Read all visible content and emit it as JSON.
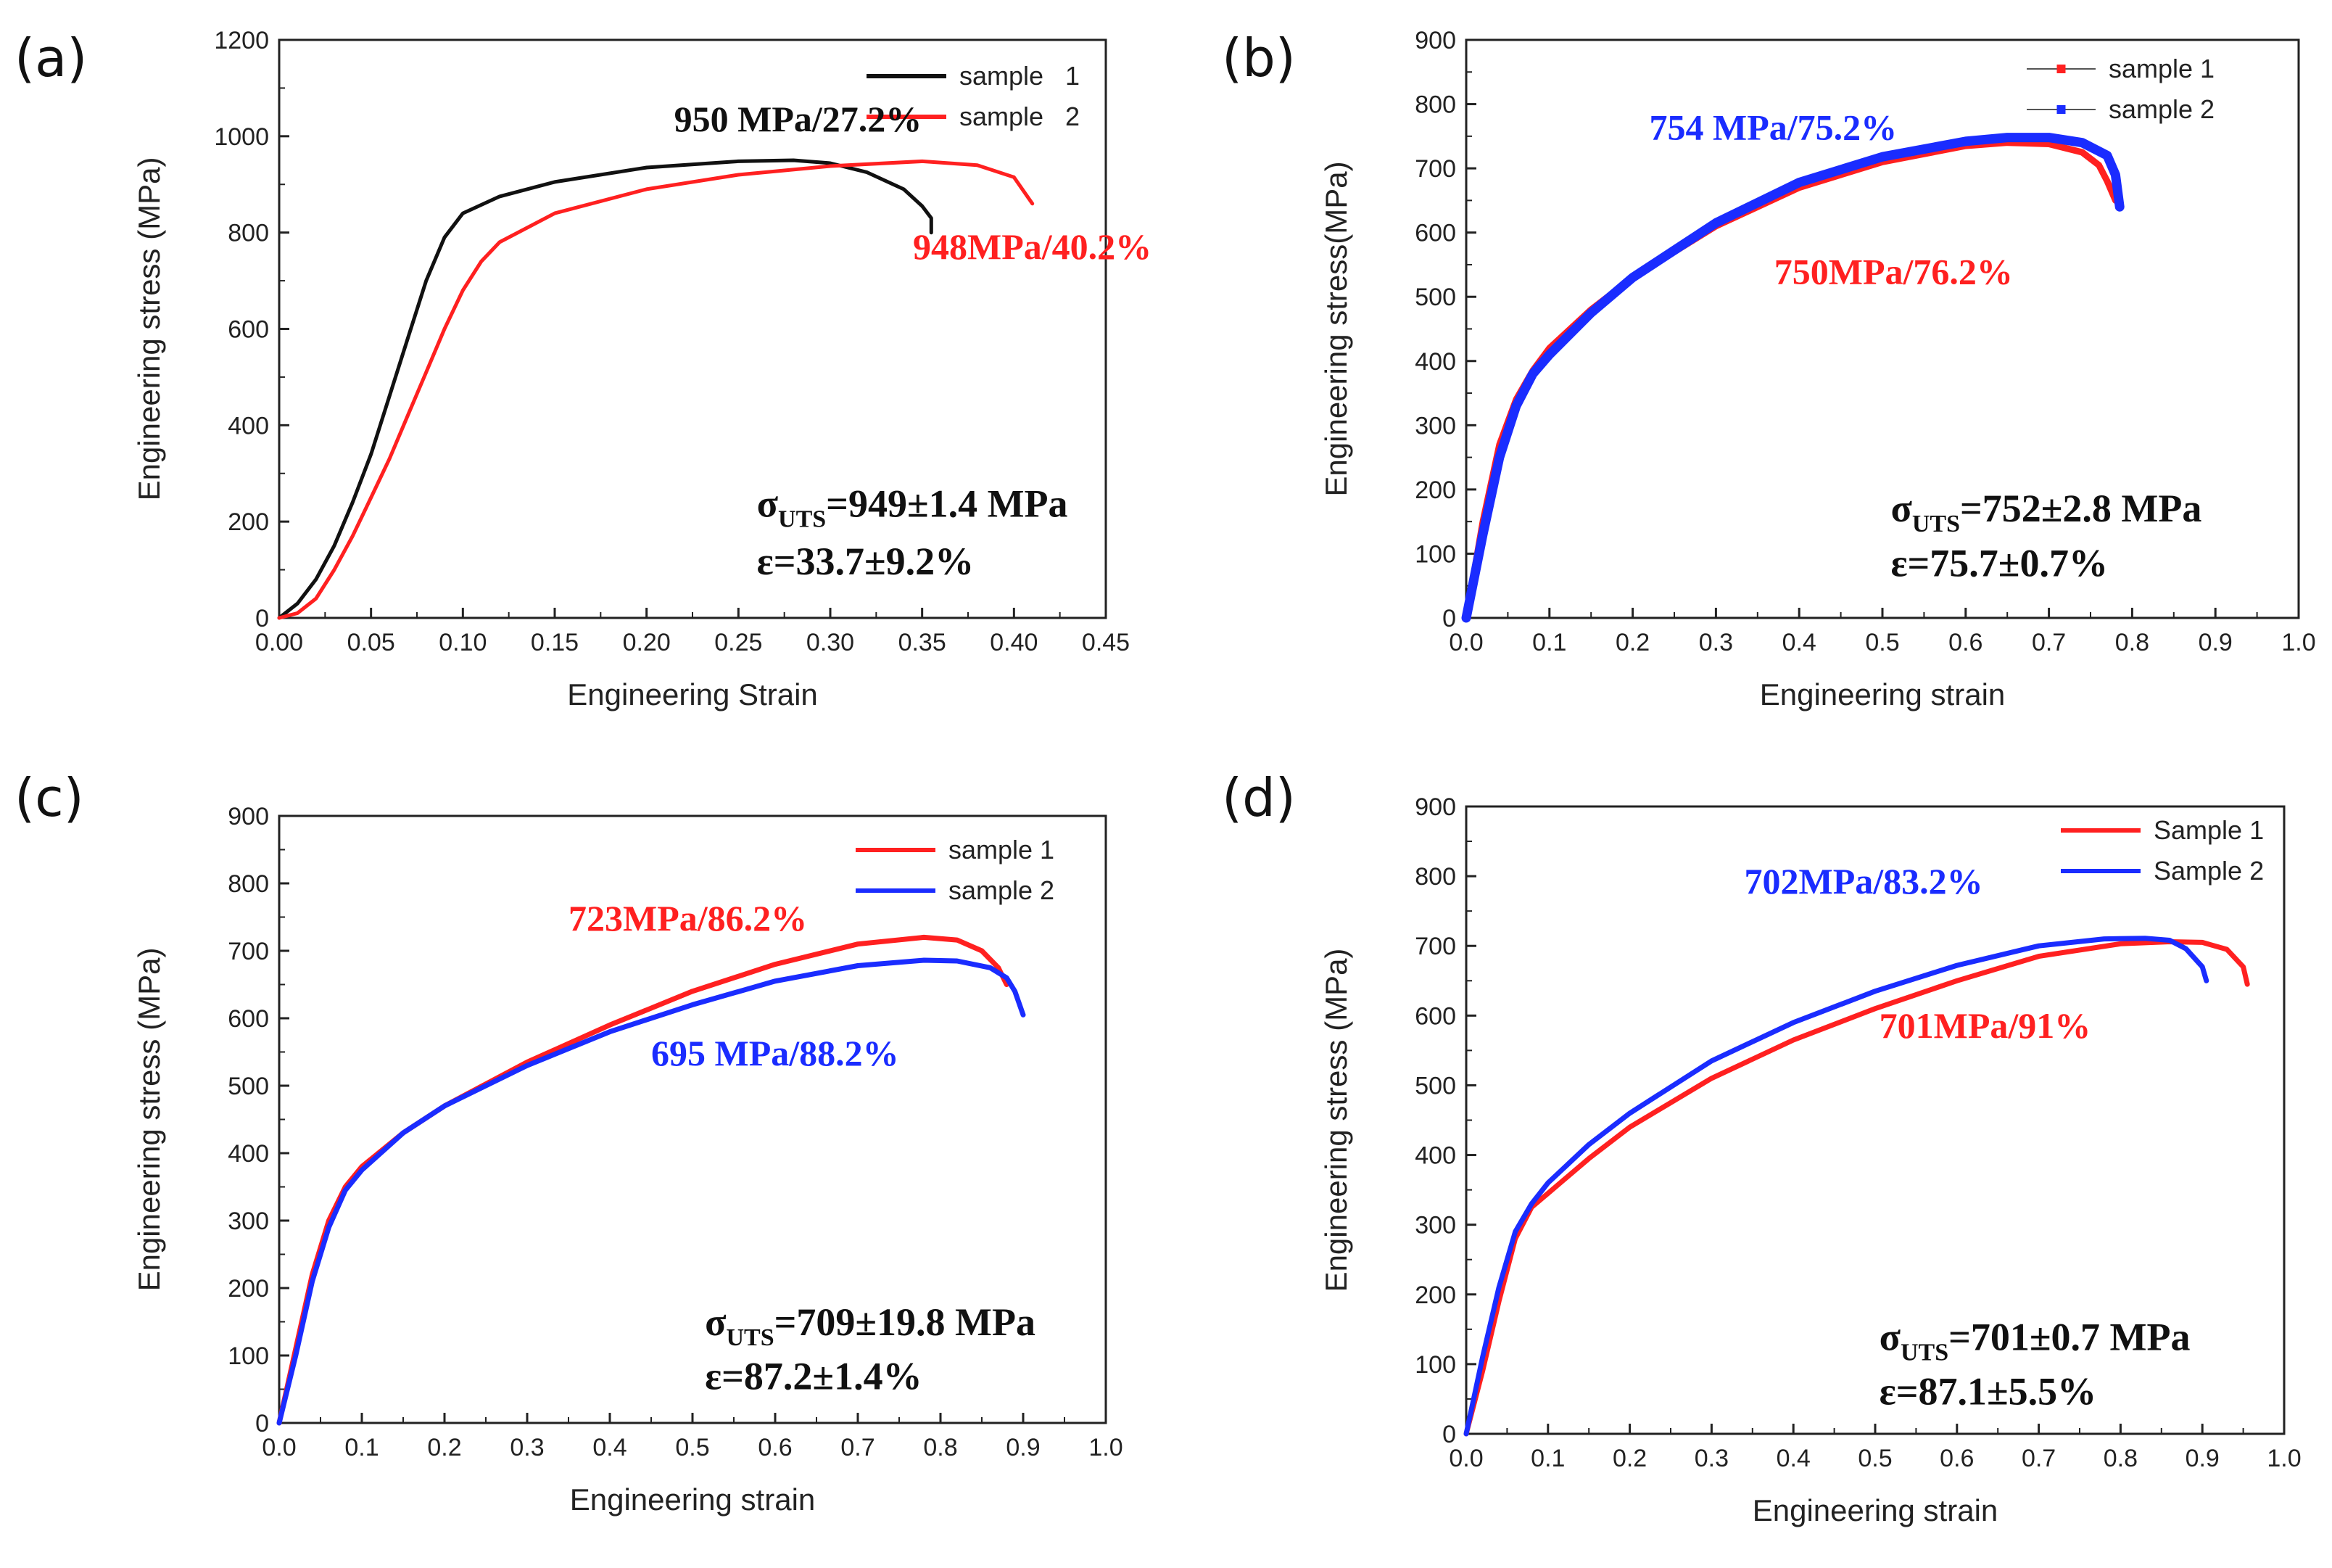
{
  "figure": {
    "colors": {
      "black": "#111111",
      "red": "#ff2020",
      "blue": "#1a2cff"
    }
  },
  "chart_data": [
    {
      "id": "a",
      "panel_label": "(a)",
      "type": "line",
      "xlabel": "Engineering Strain",
      "ylabel": "Engineering stress (MPa)",
      "xlim": [
        0.0,
        0.45
      ],
      "ylim": [
        0,
        1200
      ],
      "xticks": [
        0.0,
        0.05,
        0.1,
        0.15,
        0.2,
        0.25,
        0.3,
        0.35,
        0.4,
        0.45
      ],
      "xtick_labels": [
        "0.00",
        "0.05",
        "0.10",
        "0.15",
        "0.20",
        "0.25",
        "0.30",
        "0.35",
        "0.40",
        "0.45"
      ],
      "yticks": [
        0,
        200,
        400,
        600,
        800,
        1000,
        1200
      ],
      "ytick_labels": [
        "0",
        "200",
        "400",
        "600",
        "800",
        "1000",
        "1200"
      ],
      "grid": false,
      "legend": "top-right",
      "legend_style": "line",
      "series": [
        {
          "name": "sample   1",
          "color": "#111111",
          "x": [
            0,
            0.01,
            0.02,
            0.03,
            0.04,
            0.05,
            0.06,
            0.07,
            0.08,
            0.09,
            0.1,
            0.12,
            0.15,
            0.2,
            0.25,
            0.28,
            0.3,
            0.32,
            0.34,
            0.35,
            0.355,
            0.355
          ],
          "y": [
            0,
            30,
            80,
            150,
            240,
            340,
            460,
            580,
            700,
            790,
            840,
            875,
            905,
            935,
            948,
            950,
            944,
            925,
            890,
            855,
            830,
            800
          ]
        },
        {
          "name": "sample   2",
          "color": "#ff2020",
          "x": [
            0,
            0.01,
            0.02,
            0.03,
            0.04,
            0.05,
            0.06,
            0.07,
            0.08,
            0.09,
            0.1,
            0.11,
            0.12,
            0.15,
            0.2,
            0.25,
            0.3,
            0.35,
            0.38,
            0.4,
            0.41
          ],
          "y": [
            0,
            10,
            40,
            100,
            170,
            250,
            330,
            420,
            510,
            600,
            680,
            740,
            780,
            840,
            890,
            920,
            938,
            948,
            940,
            915,
            860
          ]
        }
      ],
      "annotations": [
        {
          "text": "950 MPa/27.2%",
          "color": "#111111",
          "x": 0.215,
          "y": 1010
        },
        {
          "text": "948MPa/40.2%",
          "color": "#ff2020",
          "x": 0.345,
          "y": 745
        }
      ],
      "stats": {
        "line1_prefix": "σ",
        "line1_sub": "UTS",
        "line1_rest": "=949±1.4 MPa",
        "line2": "ε=33.7±9.2%",
        "x1": 0.26,
        "y1": 210,
        "x2": 0.26,
        "y2": 90
      }
    },
    {
      "id": "b",
      "panel_label": "(b)",
      "type": "line",
      "xlabel": "Engineering strain",
      "ylabel": "Engineering stress(MPa)",
      "xlim": [
        0.0,
        1.0
      ],
      "ylim": [
        0,
        900
      ],
      "xticks": [
        0.0,
        0.1,
        0.2,
        0.3,
        0.4,
        0.5,
        0.6,
        0.7,
        0.8,
        0.9,
        1.0
      ],
      "xtick_labels": [
        "0.0",
        "0.1",
        "0.2",
        "0.3",
        "0.4",
        "0.5",
        "0.6",
        "0.7",
        "0.8",
        "0.9",
        "1.0"
      ],
      "yticks": [
        0,
        100,
        200,
        300,
        400,
        500,
        600,
        700,
        800,
        900
      ],
      "ytick_labels": [
        "0",
        "100",
        "200",
        "300",
        "400",
        "500",
        "600",
        "700",
        "800",
        "900"
      ],
      "grid": false,
      "legend": "top-right",
      "legend_style": "line-marker",
      "series": [
        {
          "name": "sample 1",
          "color": "#ff2020",
          "x": [
            0,
            0.02,
            0.04,
            0.06,
            0.08,
            0.1,
            0.15,
            0.2,
            0.3,
            0.4,
            0.5,
            0.6,
            0.65,
            0.7,
            0.74,
            0.76,
            0.77,
            0.78
          ],
          "y": [
            0,
            150,
            270,
            340,
            385,
            420,
            480,
            530,
            610,
            670,
            710,
            735,
            740,
            738,
            725,
            705,
            680,
            650
          ],
          "width": 9
        },
        {
          "name": "sample 2",
          "color": "#1a2cff",
          "x": [
            0,
            0.02,
            0.04,
            0.06,
            0.08,
            0.1,
            0.15,
            0.2,
            0.3,
            0.4,
            0.5,
            0.6,
            0.65,
            0.7,
            0.74,
            0.77,
            0.78,
            0.785
          ],
          "y": [
            0,
            130,
            250,
            330,
            380,
            410,
            475,
            530,
            615,
            678,
            718,
            742,
            748,
            748,
            740,
            720,
            690,
            640
          ],
          "width": 13
        }
      ],
      "annotations": [
        {
          "text": "754 MPa/75.2%",
          "color": "#1a2cff",
          "x": 0.22,
          "y": 745
        },
        {
          "text": "750MPa/76.2%",
          "color": "#ff2020",
          "x": 0.37,
          "y": 520
        }
      ],
      "stats": {
        "line1_prefix": "σ",
        "line1_sub": "UTS",
        "line1_rest": "=752±2.8 MPa",
        "line2": "ε=75.7±0.7%",
        "x1": 0.51,
        "y1": 150,
        "x2": 0.51,
        "y2": 65
      }
    },
    {
      "id": "c",
      "panel_label": "(c)",
      "type": "line",
      "xlabel": "Engineering strain",
      "ylabel": "Engineering stress (MPa)",
      "xlim": [
        0.0,
        1.0
      ],
      "ylim": [
        0,
        900
      ],
      "xticks": [
        0.0,
        0.1,
        0.2,
        0.3,
        0.4,
        0.5,
        0.6,
        0.7,
        0.8,
        0.9,
        1.0
      ],
      "xtick_labels": [
        "0.0",
        "0.1",
        "0.2",
        "0.3",
        "0.4",
        "0.5",
        "0.6",
        "0.7",
        "0.8",
        "0.9",
        "1.0"
      ],
      "yticks": [
        0,
        100,
        200,
        300,
        400,
        500,
        600,
        700,
        800,
        900
      ],
      "ytick_labels": [
        "0",
        "100",
        "200",
        "300",
        "400",
        "500",
        "600",
        "700",
        "800",
        "900"
      ],
      "grid": false,
      "legend": "top-right",
      "legend_style": "line",
      "series": [
        {
          "name": "sample 1",
          "color": "#ff2020",
          "x": [
            0,
            0.02,
            0.04,
            0.06,
            0.08,
            0.1,
            0.15,
            0.2,
            0.3,
            0.4,
            0.5,
            0.6,
            0.7,
            0.78,
            0.82,
            0.85,
            0.87,
            0.88
          ],
          "y": [
            0,
            110,
            220,
            300,
            350,
            380,
            430,
            470,
            535,
            590,
            640,
            680,
            710,
            720,
            716,
            700,
            675,
            650
          ],
          "width": 7
        },
        {
          "name": "sample 2",
          "color": "#1a2cff",
          "x": [
            0,
            0.02,
            0.04,
            0.06,
            0.08,
            0.1,
            0.15,
            0.2,
            0.3,
            0.4,
            0.5,
            0.6,
            0.7,
            0.78,
            0.82,
            0.86,
            0.88,
            0.89,
            0.9
          ],
          "y": [
            0,
            100,
            210,
            290,
            345,
            375,
            430,
            470,
            530,
            580,
            620,
            655,
            678,
            686,
            685,
            675,
            660,
            640,
            605
          ],
          "width": 7
        }
      ],
      "annotations": [
        {
          "text": "723MPa/86.2%",
          "color": "#ff2020",
          "x": 0.35,
          "y": 730
        },
        {
          "text": "695 MPa/88.2%",
          "color": "#1a2cff",
          "x": 0.45,
          "y": 530
        }
      ],
      "stats": {
        "line1_prefix": "σ",
        "line1_sub": "UTS",
        "line1_rest": "=709±19.8 MPa",
        "line2": "ε=87.2±1.4%",
        "x1": 0.515,
        "y1": 130,
        "x2": 0.515,
        "y2": 50
      }
    },
    {
      "id": "d",
      "panel_label": "(d)",
      "type": "line",
      "xlabel": "Engineering strain",
      "ylabel": "Engineering stress (MPa)",
      "xlim": [
        0.0,
        1.0
      ],
      "ylim": [
        0,
        900
      ],
      "xticks": [
        0.0,
        0.1,
        0.2,
        0.3,
        0.4,
        0.5,
        0.6,
        0.7,
        0.8,
        0.9,
        1.0
      ],
      "xtick_labels": [
        "0.0",
        "0.1",
        "0.2",
        "0.3",
        "0.4",
        "0.5",
        "0.6",
        "0.7",
        "0.8",
        "0.9",
        "1.0"
      ],
      "yticks": [
        0,
        100,
        200,
        300,
        400,
        500,
        600,
        700,
        800,
        900
      ],
      "ytick_labels": [
        "0",
        "100",
        "200",
        "300",
        "400",
        "500",
        "600",
        "700",
        "800",
        "900"
      ],
      "grid": false,
      "legend": "top-right",
      "legend_style": "line",
      "series": [
        {
          "name": "Sample 1",
          "color": "#ff2020",
          "x": [
            0,
            0.02,
            0.04,
            0.06,
            0.08,
            0.1,
            0.15,
            0.2,
            0.3,
            0.4,
            0.5,
            0.6,
            0.7,
            0.8,
            0.86,
            0.9,
            0.93,
            0.95,
            0.955
          ],
          "y": [
            0,
            90,
            190,
            280,
            325,
            345,
            395,
            440,
            510,
            565,
            610,
            650,
            685,
            703,
            706,
            705,
            695,
            670,
            645
          ],
          "width": 7
        },
        {
          "name": "Sample 2",
          "color": "#1a2cff",
          "x": [
            0,
            0.02,
            0.04,
            0.06,
            0.08,
            0.1,
            0.15,
            0.2,
            0.3,
            0.4,
            0.5,
            0.6,
            0.7,
            0.78,
            0.83,
            0.86,
            0.88,
            0.9,
            0.905
          ],
          "y": [
            0,
            110,
            210,
            290,
            330,
            360,
            415,
            460,
            535,
            590,
            635,
            672,
            700,
            710,
            711,
            708,
            696,
            670,
            650
          ],
          "width": 7
        }
      ],
      "annotations": [
        {
          "text": "702MPa/83.2%",
          "color": "#1a2cff",
          "x": 0.34,
          "y": 775
        },
        {
          "text": "701MPa/91%",
          "color": "#ff2020",
          "x": 0.505,
          "y": 568
        }
      ],
      "stats": {
        "line1_prefix": "σ",
        "line1_sub": "UTS",
        "line1_rest": "=701±0.7 MPa",
        "line2": "ε=87.1±5.5%",
        "x1": 0.505,
        "y1": 120,
        "x2": 0.505,
        "y2": 42
      }
    }
  ]
}
